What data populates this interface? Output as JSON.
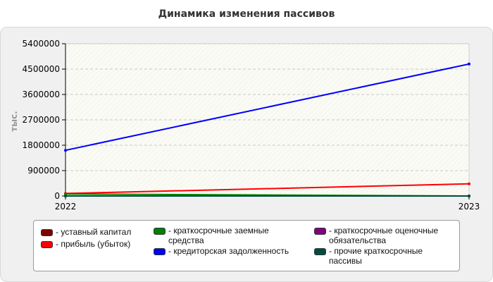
{
  "page": {
    "title": "Динамика изменения пассивов"
  },
  "chart_data": {
    "type": "line",
    "title": "Динамика изменения пассивов",
    "ylabel": "тыс.",
    "xlabel": "",
    "x": [
      "2022",
      "2023"
    ],
    "ylim": [
      0,
      5400000
    ],
    "yticks": [
      0,
      900000,
      1800000,
      2700000,
      3600000,
      4500000,
      5400000
    ],
    "ytick_labels": [
      "0",
      "900000",
      "1800000",
      "2700000",
      "3600000",
      "4500000",
      "5400000"
    ],
    "grid": true,
    "legend_position": "bottom",
    "series": [
      {
        "name": "- уставный капитал",
        "color": "#800000",
        "values": [
          10,
          10
        ]
      },
      {
        "name": "- прибыль (убыток)",
        "color": "#ff0000",
        "values": [
          90000,
          430000
        ]
      },
      {
        "name": "- краткосрочные заемные средства",
        "color": "#008000",
        "values": [
          70000,
          0
        ]
      },
      {
        "name": "- кредиторская задолженность",
        "color": "#0000ff",
        "values": [
          1620000,
          4680000
        ]
      },
      {
        "name": "- краткосрочные оценочные обязательства",
        "color": "#800080",
        "values": [
          0,
          0
        ]
      },
      {
        "name": "- прочие краткосрочные пассивы",
        "color": "#004d40",
        "values": [
          0,
          0
        ]
      }
    ],
    "legend_labels": [
      "- уставный капитал",
      "- прибыль (убыток)",
      "- краткосрочные заемные\nсредства",
      "- кредиторская задолженность",
      "- краткосрочные оценочные\nобязательства",
      "- прочие краткосрочные\nпассивы"
    ]
  }
}
